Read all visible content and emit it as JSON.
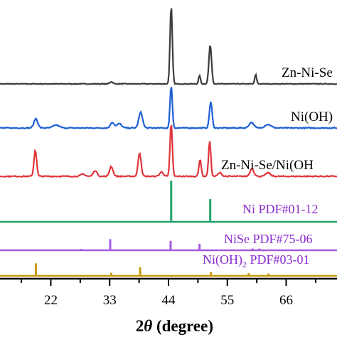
{
  "chart_data": {
    "type": "line",
    "title": "",
    "xlabel_main": "2",
    "xlabel_symbol": "θ",
    "xlabel_unit": " (degree)",
    "ylabel": "",
    "xlim": [
      10,
      80
    ],
    "xticks": [
      22,
      33,
      44,
      55,
      66
    ],
    "grid": false,
    "legend": "none",
    "series": [
      {
        "name": "Zn-Ni-Se",
        "color": "#3c3c3c",
        "baseline": 0,
        "noise": 0.25,
        "peaks": [
          [
            33.3,
            3,
            0.4
          ],
          [
            44.5,
            110,
            0.3
          ],
          [
            49.8,
            12,
            0.25
          ],
          [
            51.8,
            55,
            0.35
          ],
          [
            60.3,
            13,
            0.25
          ]
        ]
      },
      {
        "name": "Ni(OH)",
        "color": "#1f5fd6",
        "baseline": 0,
        "noise": 0.35,
        "peaks": [
          [
            19.2,
            13,
            0.5
          ],
          [
            23.0,
            4,
            0.8
          ],
          [
            33.5,
            8,
            0.5
          ],
          [
            34.8,
            6,
            0.6
          ],
          [
            38.8,
            22,
            0.5
          ],
          [
            44.5,
            60,
            0.3
          ],
          [
            51.9,
            37,
            0.35
          ],
          [
            59.5,
            8,
            0.6
          ],
          [
            62.6,
            5,
            0.8
          ]
        ]
      },
      {
        "name": "Zn-Ni-Se/Ni(OH",
        "color": "#e0363c",
        "baseline": 0,
        "noise": 0.35,
        "peaks": [
          [
            19.1,
            37,
            0.35
          ],
          [
            28.0,
            3,
            0.6
          ],
          [
            30.3,
            8,
            0.5
          ],
          [
            33.3,
            14,
            0.45
          ],
          [
            38.6,
            33,
            0.4
          ],
          [
            42.7,
            6,
            0.5
          ],
          [
            44.5,
            75,
            0.3
          ],
          [
            49.9,
            24,
            0.3
          ],
          [
            51.7,
            50,
            0.3
          ],
          [
            53.6,
            5,
            0.5
          ],
          [
            59.6,
            11,
            0.5
          ],
          [
            62.6,
            5,
            0.6
          ]
        ]
      }
    ],
    "references": [
      {
        "label_html": "Ni PDF#01-12",
        "sub": "",
        "label_rest": "",
        "color": "#21a36a",
        "peaks": [
          [
            44.5,
            1.0
          ],
          [
            51.8,
            0.55
          ]
        ]
      },
      {
        "label_html": "NiSe PDF#75-06",
        "sub": "",
        "label_rest": "",
        "color": "#a75ae0",
        "peaks": [
          [
            27.7,
            0.08
          ],
          [
            33.1,
            0.65
          ],
          [
            44.4,
            0.55
          ],
          [
            49.8,
            0.38
          ],
          [
            59.7,
            0.1
          ],
          [
            61.0,
            0.1
          ]
        ]
      },
      {
        "label_html": "Ni(OH)",
        "sub": "2",
        "label_rest": " PDF#03-01",
        "color": "#c79a0b",
        "peaks": [
          [
            19.2,
            0.8
          ],
          [
            33.3,
            0.2
          ],
          [
            38.7,
            0.55
          ],
          [
            51.9,
            0.25
          ],
          [
            59.0,
            0.18
          ],
          [
            62.7,
            0.15
          ]
        ]
      }
    ]
  }
}
